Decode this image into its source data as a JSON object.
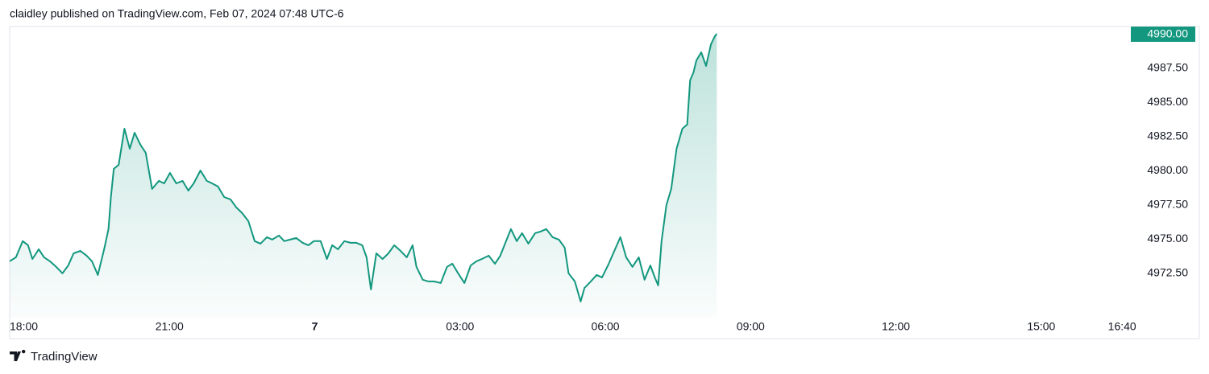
{
  "chart_data": {
    "type": "area",
    "title": "claidley published on TradingView.com, Feb 07, 2024 07:48 UTC-6",
    "brand": "TradingView",
    "color": "#13977f",
    "last_price": {
      "value": 4990,
      "label": "4990.00"
    },
    "xlim": [
      -0.3,
      22.8
    ],
    "xticks": [
      {
        "value": 0,
        "label": "18:00"
      },
      {
        "value": 3,
        "label": "21:00"
      },
      {
        "value": 6,
        "label": "7"
      },
      {
        "value": 9,
        "label": "03:00"
      },
      {
        "value": 12,
        "label": "06:00"
      },
      {
        "value": 15,
        "label": "09:00"
      },
      {
        "value": 18,
        "label": "12:00"
      },
      {
        "value": 21,
        "label": "15:00"
      },
      {
        "value": 22.67,
        "label": "16:40"
      }
    ],
    "ylim": [
      4969.27,
      4990.53
    ],
    "yticks": [
      {
        "value": 4972.5,
        "label": "4972.50"
      },
      {
        "value": 4975,
        "label": "4975.00"
      },
      {
        "value": 4977.5,
        "label": "4977.50"
      },
      {
        "value": 4980,
        "label": "4980.00"
      },
      {
        "value": 4982.5,
        "label": "4982.50"
      },
      {
        "value": 4985,
        "label": "4985.00"
      },
      {
        "value": 4987.5,
        "label": "4987.50"
      }
    ],
    "x": [
      -0.3,
      -0.17,
      -0.03,
      0.08,
      0.17,
      0.3,
      0.41,
      0.53,
      0.66,
      0.79,
      0.91,
      1.02,
      1.16,
      1.29,
      1.4,
      1.52,
      1.65,
      1.74,
      1.79,
      1.85,
      1.95,
      2.07,
      2.18,
      2.28,
      2.4,
      2.51,
      2.64,
      2.78,
      2.89,
      3.01,
      3.14,
      3.27,
      3.39,
      3.5,
      3.64,
      3.77,
      3.88,
      4.0,
      4.13,
      4.26,
      4.38,
      4.5,
      4.63,
      4.76,
      4.88,
      5.01,
      5.12,
      5.26,
      5.37,
      5.49,
      5.62,
      5.75,
      5.87,
      5.98,
      6.12,
      6.25,
      6.36,
      6.48,
      6.61,
      6.74,
      6.86,
      6.98,
      7.07,
      7.16,
      7.27,
      7.4,
      7.52,
      7.64,
      7.77,
      7.9,
      8.02,
      8.1,
      8.23,
      8.35,
      8.46,
      8.6,
      8.73,
      8.84,
      8.96,
      9.09,
      9.22,
      9.34,
      9.45,
      9.59,
      9.72,
      9.83,
      9.95,
      10.05,
      10.17,
      10.28,
      10.41,
      10.55,
      10.66,
      10.78,
      10.91,
      11.04,
      11.16,
      11.24,
      11.37,
      11.49,
      11.57,
      11.7,
      11.82,
      11.93,
      12.07,
      12.2,
      12.31,
      12.43,
      12.56,
      12.69,
      12.81,
      12.93,
      13.02,
      13.09,
      13.16,
      13.26,
      13.36,
      13.47,
      13.59,
      13.69,
      13.75,
      13.82,
      13.88,
      13.98,
      14.08,
      14.18,
      14.26,
      14.3
    ],
    "values": [
      4973.39,
      4973.68,
      4974.86,
      4974.56,
      4973.56,
      4974.27,
      4973.68,
      4973.39,
      4972.98,
      4972.51,
      4973.09,
      4973.97,
      4974.15,
      4973.8,
      4973.39,
      4972.39,
      4974.27,
      4975.74,
      4978.08,
      4980.14,
      4980.43,
      4983.07,
      4981.61,
      4982.78,
      4981.9,
      4981.31,
      4978.67,
      4979.26,
      4979.08,
      4979.84,
      4979.08,
      4979.26,
      4978.55,
      4979.08,
      4980.02,
      4979.26,
      4979.08,
      4978.85,
      4978.08,
      4977.91,
      4977.32,
      4976.91,
      4976.32,
      4974.86,
      4974.68,
      4975.15,
      4974.97,
      4975.27,
      4974.86,
      4974.97,
      4975.09,
      4974.74,
      4974.56,
      4974.86,
      4974.86,
      4973.56,
      4974.56,
      4974.27,
      4974.86,
      4974.74,
      4974.74,
      4974.56,
      4973.68,
      4971.33,
      4973.97,
      4973.56,
      4973.97,
      4974.56,
      4974.15,
      4973.68,
      4974.56,
      4972.98,
      4972.04,
      4971.92,
      4971.92,
      4971.8,
      4972.98,
      4973.21,
      4972.51,
      4971.8,
      4973.09,
      4973.39,
      4973.56,
      4973.8,
      4973.21,
      4973.8,
      4974.86,
      4975.74,
      4974.86,
      4975.44,
      4974.68,
      4975.44,
      4975.56,
      4975.74,
      4975.15,
      4974.97,
      4974.39,
      4972.51,
      4971.92,
      4970.45,
      4971.45,
      4971.92,
      4972.39,
      4972.21,
      4973.21,
      4974.27,
      4975.15,
      4973.68,
      4972.98,
      4973.68,
      4972.04,
      4973.09,
      4972.21,
      4971.63,
      4974.86,
      4977.49,
      4978.67,
      4981.61,
      4983.07,
      4983.37,
      4986.6,
      4987.18,
      4988.06,
      4988.65,
      4987.65,
      4989.24,
      4989.82,
      4990.0
    ]
  }
}
